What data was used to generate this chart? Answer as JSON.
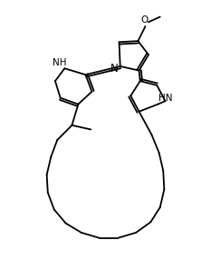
{
  "bg_color": "#ffffff",
  "line_color": "#000000",
  "lw": 1.3,
  "dbo": 0.1,
  "figsize": [
    2.33,
    3.08
  ],
  "dpi": 100,
  "xlim": [
    0,
    10
  ],
  "ylim": [
    0,
    13
  ]
}
